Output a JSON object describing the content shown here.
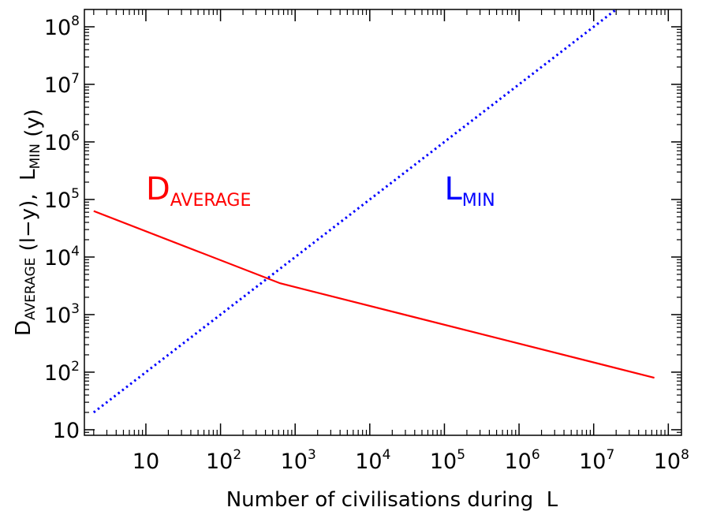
{
  "chart_data": {
    "type": "line",
    "title": "",
    "xlabel": "Number of civilisations during  L",
    "ylabel": {
      "parts": [
        {
          "text": "D",
          "sub": "AVERAGE"
        },
        {
          "text": " (l−y),  L",
          "sub": "MIN"
        },
        {
          "text": " (y)",
          "sub": ""
        }
      ]
    },
    "x_scale": "log",
    "y_scale": "log",
    "xlim": [
      1.5,
      150000000
    ],
    "ylim": [
      8,
      200000000
    ],
    "x_ticks": [
      {
        "value": 10,
        "base": "10",
        "exp": ""
      },
      {
        "value": 100,
        "base": "10",
        "exp": "2"
      },
      {
        "value": 1000,
        "base": "10",
        "exp": "3"
      },
      {
        "value": 10000,
        "base": "10",
        "exp": "4"
      },
      {
        "value": 100000,
        "base": "10",
        "exp": "5"
      },
      {
        "value": 1000000,
        "base": "10",
        "exp": "6"
      },
      {
        "value": 10000000,
        "base": "10",
        "exp": "7"
      },
      {
        "value": 100000000,
        "base": "10",
        "exp": "8"
      }
    ],
    "y_ticks": [
      {
        "value": 10,
        "base": "10",
        "exp": ""
      },
      {
        "value": 100,
        "base": "10",
        "exp": "2"
      },
      {
        "value": 1000,
        "base": "10",
        "exp": "3"
      },
      {
        "value": 10000,
        "base": "10",
        "exp": "4"
      },
      {
        "value": 100000,
        "base": "10",
        "exp": "5"
      },
      {
        "value": 1000000,
        "base": "10",
        "exp": "6"
      },
      {
        "value": 10000000,
        "base": "10",
        "exp": "7"
      },
      {
        "value": 100000000,
        "base": "10",
        "exp": "8"
      }
    ],
    "grid": false,
    "series": [
      {
        "name": "D",
        "name_sub": "AVERAGE",
        "color": "#ff0000",
        "style": "solid",
        "x": [
          2,
          630,
          65000000
        ],
        "y": [
          63000,
          3500,
          80
        ]
      },
      {
        "name": "L",
        "name_sub": "MIN",
        "color": "#0000ff",
        "style": "dotted",
        "x": [
          2,
          20000000
        ],
        "y": [
          20,
          200000000
        ]
      }
    ],
    "annotations": [
      {
        "series": 0,
        "text": "D",
        "sub": "AVERAGE",
        "at_x": 10,
        "at_y": 100000
      },
      {
        "series": 1,
        "text": "L",
        "sub": "MIN",
        "at_x": 100000,
        "at_y": 100000
      }
    ]
  }
}
